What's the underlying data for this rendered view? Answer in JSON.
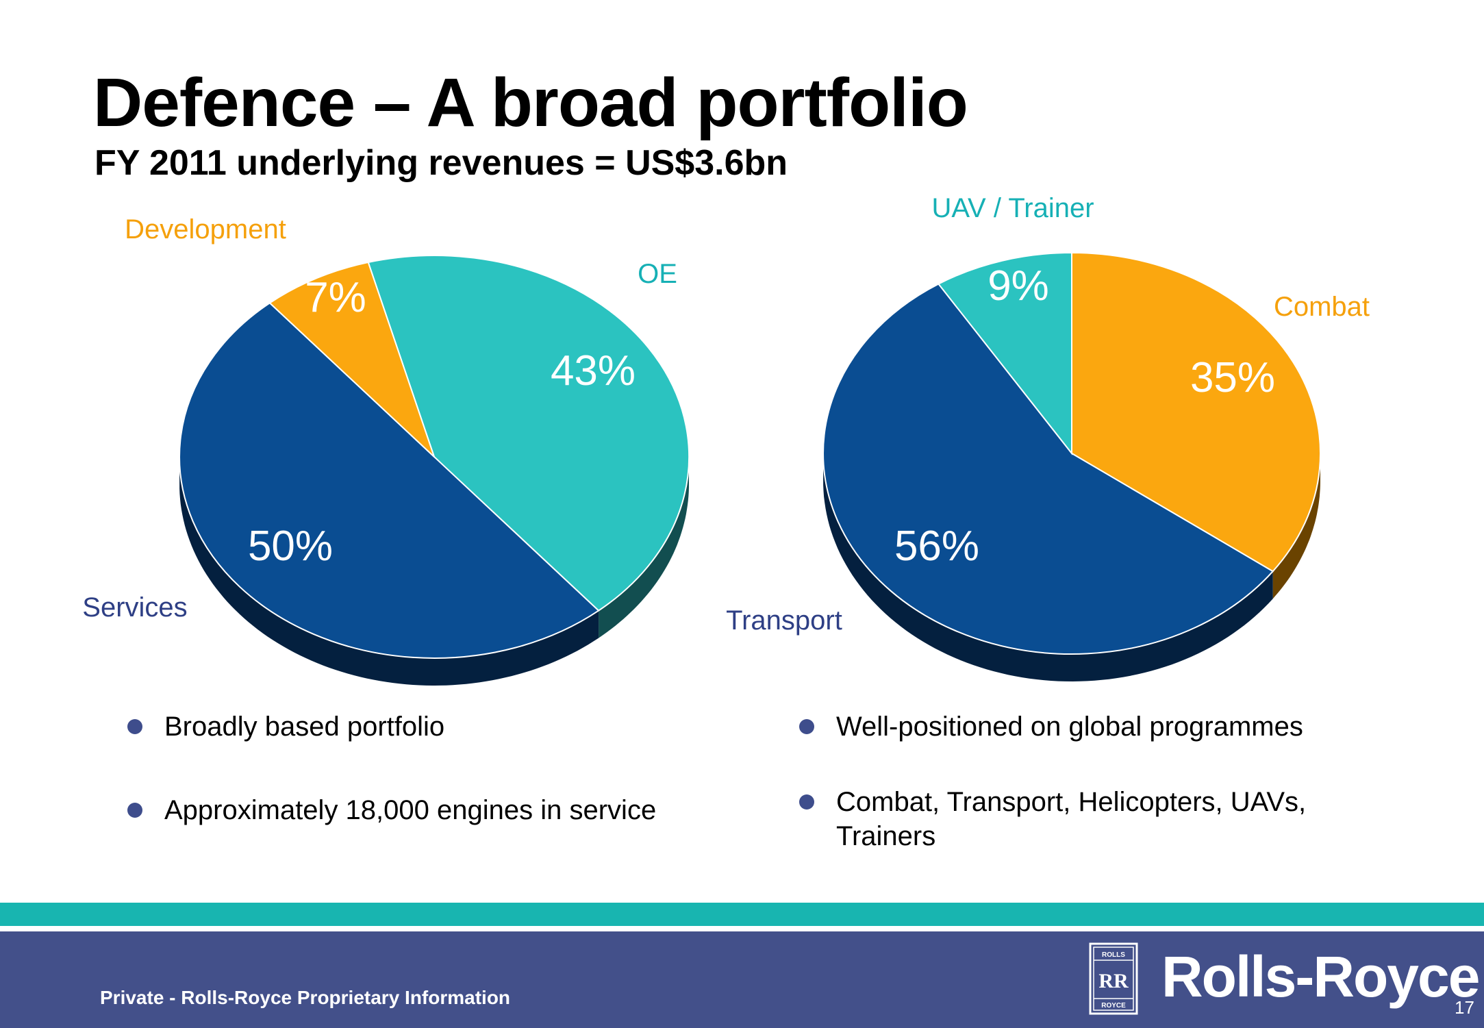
{
  "slide": {
    "title": "Defence – A broad portfolio",
    "subtitle": "FY 2011 underlying revenues = US$3.6bn",
    "footer": "Private - Rolls-Royce Proprietary Information",
    "brand": "Rolls-Royce",
    "badge_top": "ROLLS",
    "badge_bottom": "ROYCE",
    "badge_mark": "RR",
    "page_number": "17"
  },
  "chart_data": [
    {
      "type": "pie",
      "slices": [
        {
          "label": "OE",
          "value": 43,
          "value_label": "43%",
          "color": "#2bc3c0",
          "side_color": "#124e50"
        },
        {
          "label": "Services",
          "value": 50,
          "value_label": "50%",
          "color": "#0a4d92",
          "side_color": "#04203f"
        },
        {
          "label": "Development",
          "value": 7,
          "value_label": "7%",
          "color": "#fba70f",
          "side_color": "#6a4300"
        }
      ]
    },
    {
      "type": "pie",
      "slices": [
        {
          "label": "Combat",
          "value": 35,
          "value_label": "35%",
          "color": "#fba70f",
          "side_color": "#6a4300"
        },
        {
          "label": "Transport",
          "value": 56,
          "value_label": "56%",
          "color": "#0a4d92",
          "side_color": "#04203f"
        },
        {
          "label": "UAV / Trainer",
          "value": 9,
          "value_label": "9%",
          "color": "#2bc3c0",
          "side_color": "#124e50"
        }
      ]
    }
  ],
  "bullets_left": [
    "Broadly based portfolio",
    "Approximately 18,000 engines in service"
  ],
  "bullets_right": [
    "Well-positioned on global programmes",
    "Combat, Transport, Helicopters, UAVs,",
    "Trainers"
  ],
  "colors": {
    "teal_band": "#18b5b0",
    "navy_band": "#43508a",
    "bullet": "#3e4d8c",
    "series_orange_label": "#f5a00b",
    "series_teal_label": "#16b0b5",
    "series_navy_label": "#2e3f85"
  }
}
